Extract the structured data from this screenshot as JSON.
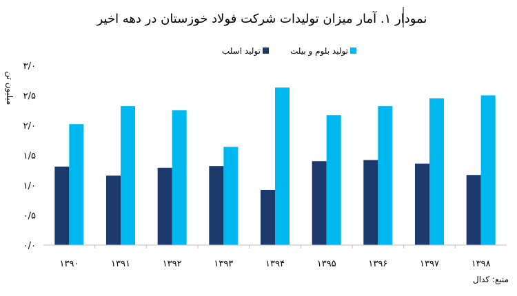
{
  "chart_data": {
    "type": "bar",
    "title": "نمودار ۱. آمار میزان تولیدات شرکت فولاد خوزستان در دهه اخیر",
    "ylabel": "میلیون تن",
    "xlabel": "",
    "categories": [
      "۱۳۹۰",
      "۱۳۹۱",
      "۱۳۹۲",
      "۱۳۹۳",
      "۱۳۹۴",
      "۱۳۹۵",
      "۱۳۹۶",
      "۱۳۹۷",
      "۱۳۹۸"
    ],
    "series": [
      {
        "name": "تولید اسلب",
        "color": "#1b3a6b",
        "values": [
          1.31,
          1.16,
          1.29,
          1.32,
          0.92,
          1.4,
          1.42,
          1.36,
          1.17
        ]
      },
      {
        "name": "تولید بلوم و بیلت",
        "color": "#00b8f0",
        "values": [
          2.02,
          2.32,
          2.25,
          1.64,
          2.63,
          2.17,
          2.32,
          2.45,
          2.5
        ]
      }
    ],
    "ylim": [
      0,
      3
    ],
    "yticks": [
      0,
      0.5,
      1,
      1.5,
      2,
      2.5,
      3
    ],
    "ytick_labels": [
      "۰/۰",
      "۰/۵",
      "۱/۰",
      "۱/۵",
      "۲/۰",
      "۲/۵",
      "۳/۰"
    ],
    "grid": false,
    "legend_position": "top"
  },
  "source": "منبع: کدال"
}
